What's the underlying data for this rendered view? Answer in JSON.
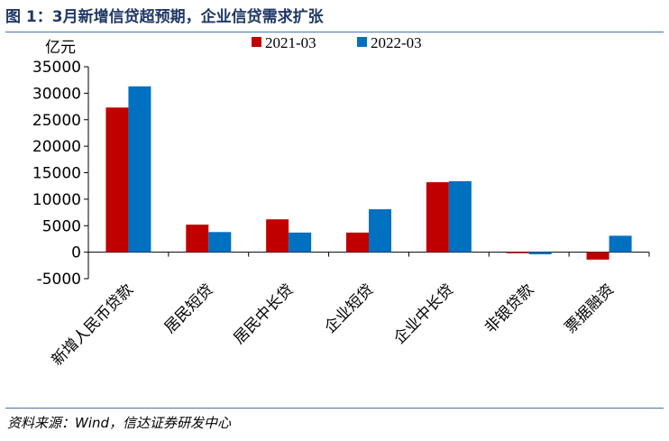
{
  "figure": {
    "title": "图 1：3月新增信贷超预期，企业信贷需求扩张",
    "source": "资料来源：Wind，信达证券研发中心"
  },
  "colors": {
    "series_2021": "#c00000",
    "series_2022": "#0070c0",
    "title": "#1f3864",
    "rule": "#4a6fa5"
  },
  "chart_data": {
    "type": "bar",
    "title": "",
    "ylabel": "亿元",
    "xlabel": "",
    "ylim": [
      -5000,
      35000
    ],
    "yticks": [
      -5000,
      0,
      5000,
      10000,
      15000,
      20000,
      25000,
      30000,
      35000
    ],
    "grid": false,
    "legend_position": "top",
    "categories": [
      "新增人民币贷款",
      "居民短贷",
      "居民中长贷",
      "企业短贷",
      "企业中长贷",
      "非银贷款",
      "票据融资"
    ],
    "series": [
      {
        "name": "2021-03",
        "values": [
          27300,
          5200,
          6200,
          3700,
          13200,
          -200,
          -1400
        ]
      },
      {
        "name": "2022-03",
        "values": [
          31300,
          3800,
          3700,
          8100,
          13400,
          -400,
          3100
        ]
      }
    ]
  }
}
